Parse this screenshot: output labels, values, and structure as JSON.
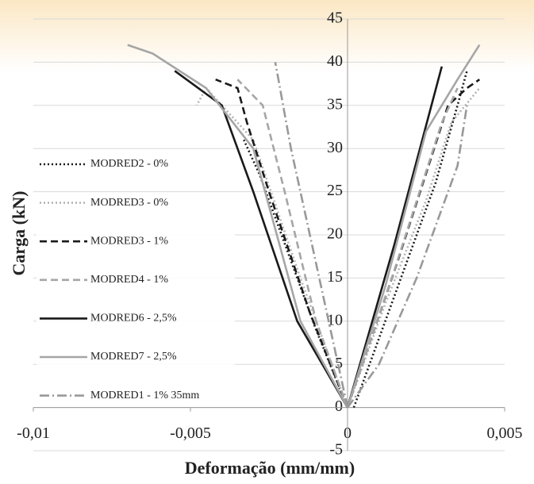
{
  "chart_data": {
    "type": "line",
    "x_label": "Deformação (mm/mm)",
    "y_label": "Carga (kN)",
    "xlim": [
      -0.01,
      0.005
    ],
    "ylim": [
      -5,
      45
    ],
    "xticks": [
      {
        "value": -0.01,
        "label": "-0,01"
      },
      {
        "value": -0.005,
        "label": "-0,005"
      },
      0,
      {
        "value": 0.005,
        "label": "0,005"
      }
    ],
    "yticks": [
      -5,
      0,
      5,
      10,
      15,
      20,
      25,
      30,
      35,
      40,
      45
    ],
    "grid": true,
    "legend": "left",
    "series": [
      {
        "name": "MODRED2 - 0%",
        "color": "#1a1a1a",
        "style": "dotted",
        "x": [
          0,
          -0.001,
          -0.002,
          -0.0028,
          -0.0033,
          null,
          0.0002,
          0.0015,
          0.0028,
          0.0035,
          0.0038
        ],
        "values": [
          0,
          9,
          19,
          27,
          31,
          null,
          0,
          13,
          26,
          35,
          39
        ]
      },
      {
        "name": "MODRED3 - 0%",
        "color": "#b3b3b3",
        "style": "dotted",
        "x": [
          0,
          -0.0015,
          -0.003,
          -0.0045,
          -0.0048,
          null,
          0,
          0.0012,
          0.0025,
          0.0033,
          0.0042
        ],
        "values": [
          0,
          15,
          31,
          37,
          35,
          null,
          0,
          12,
          24,
          33,
          37
        ]
      },
      {
        "name": "MODRED3 - 1%",
        "color": "#1a1a1a",
        "style": "dashed",
        "x": [
          0,
          -0.0012,
          -0.0025,
          -0.0032,
          -0.0035,
          -0.0042,
          null,
          0,
          0.0016,
          0.0032,
          0.0038,
          0.0042
        ],
        "values": [
          0,
          11,
          25,
          33,
          37,
          38,
          null,
          0,
          17,
          35,
          37,
          38
        ]
      },
      {
        "name": "MODRED4 - 1%",
        "color": "#a6a6a6",
        "style": "dashed",
        "x": [
          0,
          -0.001,
          -0.002,
          -0.0027,
          -0.0035,
          null,
          0,
          0.0015,
          0.003,
          0.0035
        ],
        "values": [
          0,
          10,
          25,
          35,
          38,
          null,
          0,
          16,
          33,
          37
        ]
      },
      {
        "name": "MODRED6 - 2,5%",
        "color": "#1a1a1a",
        "style": "solid",
        "x": [
          0,
          -0.0016,
          -0.003,
          -0.004,
          -0.0055,
          null,
          0,
          0.0015,
          0.003
        ],
        "values": [
          0,
          10,
          25,
          35,
          39,
          null,
          0,
          19,
          39.5
        ]
      },
      {
        "name": "MODRED7 - 2,5%",
        "color": "#a6a6a6",
        "style": "solid",
        "x": [
          0,
          -0.0015,
          -0.003,
          -0.0045,
          -0.0062,
          -0.007,
          null,
          0,
          0.0012,
          0.0025,
          0.0035,
          0.0042
        ],
        "values": [
          0,
          10,
          30,
          37,
          41,
          42,
          null,
          0,
          14,
          32,
          38,
          42
        ]
      },
      {
        "name": "MODRED1 - 1% 35mm",
        "color": "#999999",
        "style": "dashdot",
        "x": [
          0,
          -0.0006,
          -0.0012,
          -0.0018,
          -0.0022,
          -0.0023,
          null,
          0,
          0.001,
          0.0022,
          0.0035,
          0.0038
        ],
        "values": [
          0,
          10,
          20,
          30,
          38,
          40,
          null,
          0,
          5,
          15,
          28,
          35
        ]
      }
    ]
  }
}
